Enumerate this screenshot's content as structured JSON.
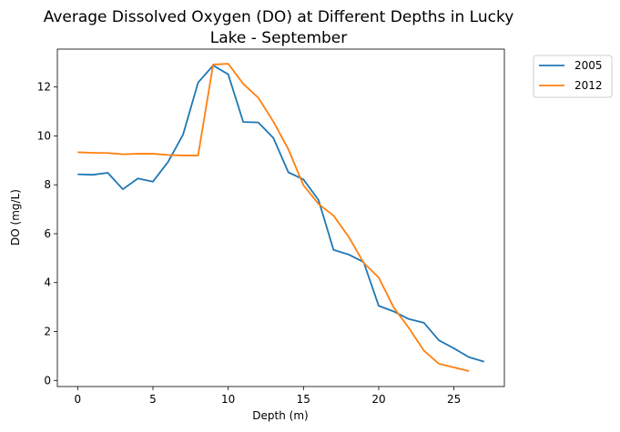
{
  "chart_data": {
    "type": "line",
    "title_line1": "Average Dissolved Oxygen (DO) at Different Depths in Lucky",
    "title_line2": "Lake - September",
    "xlabel": "Depth (m)",
    "ylabel": "DO (mg/L)",
    "xlim": [
      -1.35,
      28.35
    ],
    "ylim": [
      -0.25,
      13.55
    ],
    "xticks": [
      0,
      5,
      10,
      15,
      20,
      25
    ],
    "yticks": [
      0,
      2,
      4,
      6,
      8,
      10,
      12
    ],
    "grid": false,
    "legend_placement": "outside-top-right",
    "series": [
      {
        "name": "2005",
        "color": "#1f77b4",
        "x": [
          0,
          1,
          2,
          3,
          4,
          5,
          6,
          7,
          8,
          9,
          10,
          11,
          12,
          13,
          14,
          15,
          16,
          17,
          18,
          19,
          20,
          21,
          22,
          23,
          24,
          25,
          26,
          27
        ],
        "values": [
          8.43,
          8.41,
          8.49,
          7.82,
          8.26,
          8.13,
          8.93,
          10.05,
          12.18,
          12.88,
          12.52,
          10.57,
          10.55,
          9.92,
          8.51,
          8.22,
          7.38,
          5.34,
          5.15,
          4.84,
          3.05,
          2.82,
          2.51,
          2.36,
          1.64,
          1.31,
          0.95,
          0.77
        ]
      },
      {
        "name": "2012",
        "color": "#ff7f0e",
        "x": [
          0,
          1,
          2,
          3,
          4,
          5,
          6,
          7,
          8,
          9,
          10,
          11,
          12,
          13,
          14,
          15,
          16,
          17,
          18,
          19,
          20,
          21,
          22,
          23,
          24,
          25,
          26
        ],
        "values": [
          9.33,
          9.31,
          9.3,
          9.25,
          9.27,
          9.27,
          9.22,
          9.2,
          9.2,
          12.92,
          12.95,
          12.13,
          11.56,
          10.59,
          9.45,
          7.98,
          7.22,
          6.74,
          5.88,
          4.81,
          4.21,
          2.98,
          2.15,
          1.22,
          0.68,
          0.53,
          0.38
        ]
      }
    ]
  }
}
